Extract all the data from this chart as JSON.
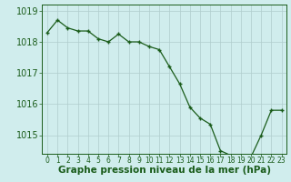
{
  "x": [
    0,
    1,
    2,
    3,
    4,
    5,
    6,
    7,
    8,
    9,
    10,
    11,
    12,
    13,
    14,
    15,
    16,
    17,
    18,
    19,
    20,
    21,
    22,
    23
  ],
  "y": [
    1018.3,
    1018.7,
    1018.45,
    1018.35,
    1018.35,
    1018.1,
    1018.0,
    1018.25,
    1018.0,
    1018.0,
    1017.85,
    1017.75,
    1017.2,
    1016.65,
    1015.9,
    1015.55,
    1015.35,
    1014.5,
    1014.35,
    1014.25,
    1014.3,
    1015.0,
    1015.8,
    1015.8
  ],
  "line_color": "#1a5c1a",
  "marker_color": "#1a5c1a",
  "bg_color": "#d0eded",
  "grid_color": "#b0cccc",
  "axis_color": "#1a5c1a",
  "label_color": "#1a5c1a",
  "xlabel": "Graphe pression niveau de la mer (hPa)",
  "yticks": [
    1015,
    1016,
    1017,
    1018,
    1019
  ],
  "xticks": [
    0,
    1,
    2,
    3,
    4,
    5,
    6,
    7,
    8,
    9,
    10,
    11,
    12,
    13,
    14,
    15,
    16,
    17,
    18,
    19,
    20,
    21,
    22,
    23
  ],
  "ylim": [
    1014.4,
    1019.2
  ],
  "xlim": [
    -0.5,
    23.5
  ],
  "ytick_fontsize": 7,
  "xtick_fontsize": 5.5,
  "xlabel_fontsize": 7.5
}
